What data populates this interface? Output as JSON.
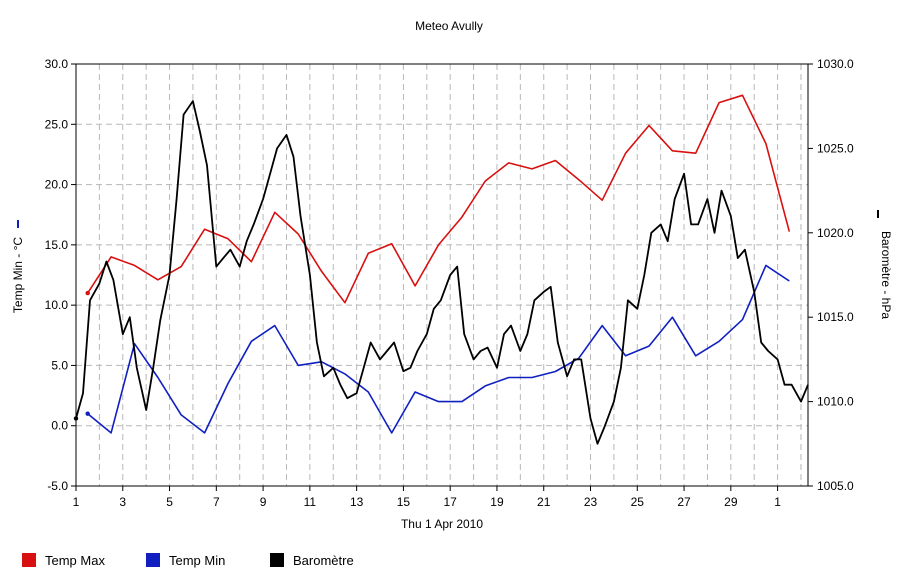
{
  "chart_data": {
    "type": "line",
    "title": "Meteo  Avully",
    "xlabel": "Thu 1 Apr 2010",
    "x_tick_labels": [
      "1",
      "3",
      "5",
      "7",
      "9",
      "11",
      "13",
      "15",
      "17",
      "19",
      "21",
      "23",
      "25",
      "27",
      "29",
      "1"
    ],
    "x_range_days": [
      1,
      32.3
    ],
    "y_left": {
      "label": "Temp Min - °C",
      "range": [
        -5,
        30
      ],
      "tick_labels": [
        "-5.0",
        "0.0",
        "5.0",
        "10.0",
        "15.0",
        "20.0",
        "25.0",
        "30.0"
      ]
    },
    "y_right": {
      "label": "Baromètre - hPa",
      "range": [
        1005,
        1030
      ],
      "tick_labels": [
        "1005.0",
        "1010.0",
        "1015.0",
        "1020.0",
        "1025.0",
        "1030.0"
      ]
    },
    "grid": true,
    "legend_placement": "bottom-left",
    "series": [
      {
        "name": "Temp Max",
        "axis": "left",
        "color": "#d81010",
        "x": [
          1.5,
          2.5,
          3.5,
          4.5,
          5.5,
          6.5,
          7.5,
          8.5,
          9.5,
          10.5,
          11.5,
          12.5,
          13.5,
          14.5,
          15.5,
          16.5,
          17.5,
          18.5,
          19.5,
          20.5,
          21.5,
          22.5,
          23.5,
          24.5,
          25.5,
          26.5,
          27.5,
          28.5,
          29.5,
          30.5,
          31.5
        ],
        "y": [
          11.0,
          14.0,
          13.3,
          12.1,
          13.2,
          16.3,
          15.5,
          13.6,
          17.7,
          15.9,
          12.8,
          10.2,
          14.3,
          15.1,
          11.6,
          15.0,
          17.3,
          20.3,
          21.8,
          21.3,
          22.0,
          20.4,
          18.7,
          22.6,
          24.9,
          22.8,
          22.6,
          26.8,
          27.4,
          23.4,
          16.1
        ]
      },
      {
        "name": "Temp Min",
        "axis": "left",
        "color": "#1020c0",
        "x": [
          1.5,
          2.5,
          3.5,
          4.5,
          5.5,
          6.5,
          7.5,
          8.5,
          9.5,
          10.5,
          11.5,
          12.5,
          13.5,
          14.5,
          15.5,
          16.5,
          17.5,
          18.5,
          19.5,
          20.5,
          21.5,
          22.5,
          23.5,
          24.5,
          25.5,
          26.5,
          27.5,
          28.5,
          29.5,
          30.5,
          31.5
        ],
        "y": [
          1.0,
          -0.6,
          6.8,
          4.0,
          0.9,
          -0.6,
          3.5,
          7.0,
          8.3,
          5.0,
          5.3,
          4.3,
          2.8,
          -0.6,
          2.8,
          2.0,
          2.0,
          3.3,
          4.0,
          4.0,
          4.5,
          5.6,
          8.3,
          5.8,
          6.6,
          9.0,
          5.8,
          7.0,
          8.8,
          13.3,
          12.0
        ]
      },
      {
        "name": "Baromètre",
        "axis": "right",
        "color": "#000000",
        "x": [
          1.0,
          1.3,
          1.6,
          2.0,
          2.3,
          2.6,
          3.0,
          3.3,
          3.6,
          4.0,
          4.3,
          4.6,
          5.0,
          5.3,
          5.6,
          6.0,
          6.3,
          6.6,
          7.0,
          7.3,
          7.6,
          8.0,
          8.3,
          8.6,
          9.0,
          9.3,
          9.6,
          10.0,
          10.3,
          10.6,
          11.0,
          11.3,
          11.6,
          12.0,
          12.3,
          12.6,
          13.0,
          13.3,
          13.6,
          14.0,
          14.3,
          14.6,
          15.0,
          15.3,
          15.6,
          16.0,
          16.3,
          16.6,
          17.0,
          17.3,
          17.6,
          18.0,
          18.3,
          18.6,
          19.0,
          19.3,
          19.6,
          20.0,
          20.3,
          20.6,
          21.0,
          21.3,
          21.6,
          22.0,
          22.3,
          22.6,
          23.0,
          23.3,
          23.6,
          24.0,
          24.3,
          24.6,
          25.0,
          25.3,
          25.6,
          26.0,
          26.3,
          26.6,
          27.0,
          27.3,
          27.6,
          28.0,
          28.3,
          28.6,
          29.0,
          29.3,
          29.6,
          30.0,
          30.3,
          30.6,
          31.0,
          31.3,
          31.6,
          32.0,
          32.3
        ],
        "y": [
          1009.0,
          1010.5,
          1016.0,
          1017.0,
          1018.3,
          1017.2,
          1014.0,
          1015.0,
          1012.0,
          1009.5,
          1012.0,
          1014.8,
          1017.5,
          1022.0,
          1027.0,
          1027.8,
          1026.0,
          1024.0,
          1018.0,
          1018.5,
          1019.0,
          1018.0,
          1019.5,
          1020.5,
          1022.0,
          1023.5,
          1025.0,
          1025.8,
          1024.5,
          1021.0,
          1017.5,
          1013.5,
          1011.5,
          1012.0,
          1011.0,
          1010.2,
          1010.5,
          1012.0,
          1013.5,
          1012.5,
          1013.0,
          1013.5,
          1011.8,
          1012.0,
          1013.0,
          1014.0,
          1015.5,
          1016.0,
          1017.5,
          1018.0,
          1014.0,
          1012.5,
          1013.0,
          1013.2,
          1012.0,
          1014.0,
          1014.5,
          1013.0,
          1014.0,
          1016.0,
          1016.5,
          1016.8,
          1013.5,
          1011.5,
          1012.5,
          1012.5,
          1009.0,
          1007.5,
          1008.5,
          1010.0,
          1012.0,
          1016.0,
          1015.5,
          1017.5,
          1020.0,
          1020.5,
          1019.5,
          1022.0,
          1023.5,
          1020.5,
          1020.5,
          1022.0,
          1020.0,
          1022.5,
          1021.0,
          1018.5,
          1019.0,
          1016.5,
          1013.5,
          1013.0,
          1012.5,
          1011.0,
          1011.0,
          1010.0,
          1011.0
        ]
      }
    ]
  },
  "legend": {
    "items": [
      {
        "label": "Temp Max",
        "color": "#d81010"
      },
      {
        "label": "Temp Min",
        "color": "#1020c0"
      },
      {
        "label": "Baromètre",
        "color": "#000000"
      }
    ]
  }
}
